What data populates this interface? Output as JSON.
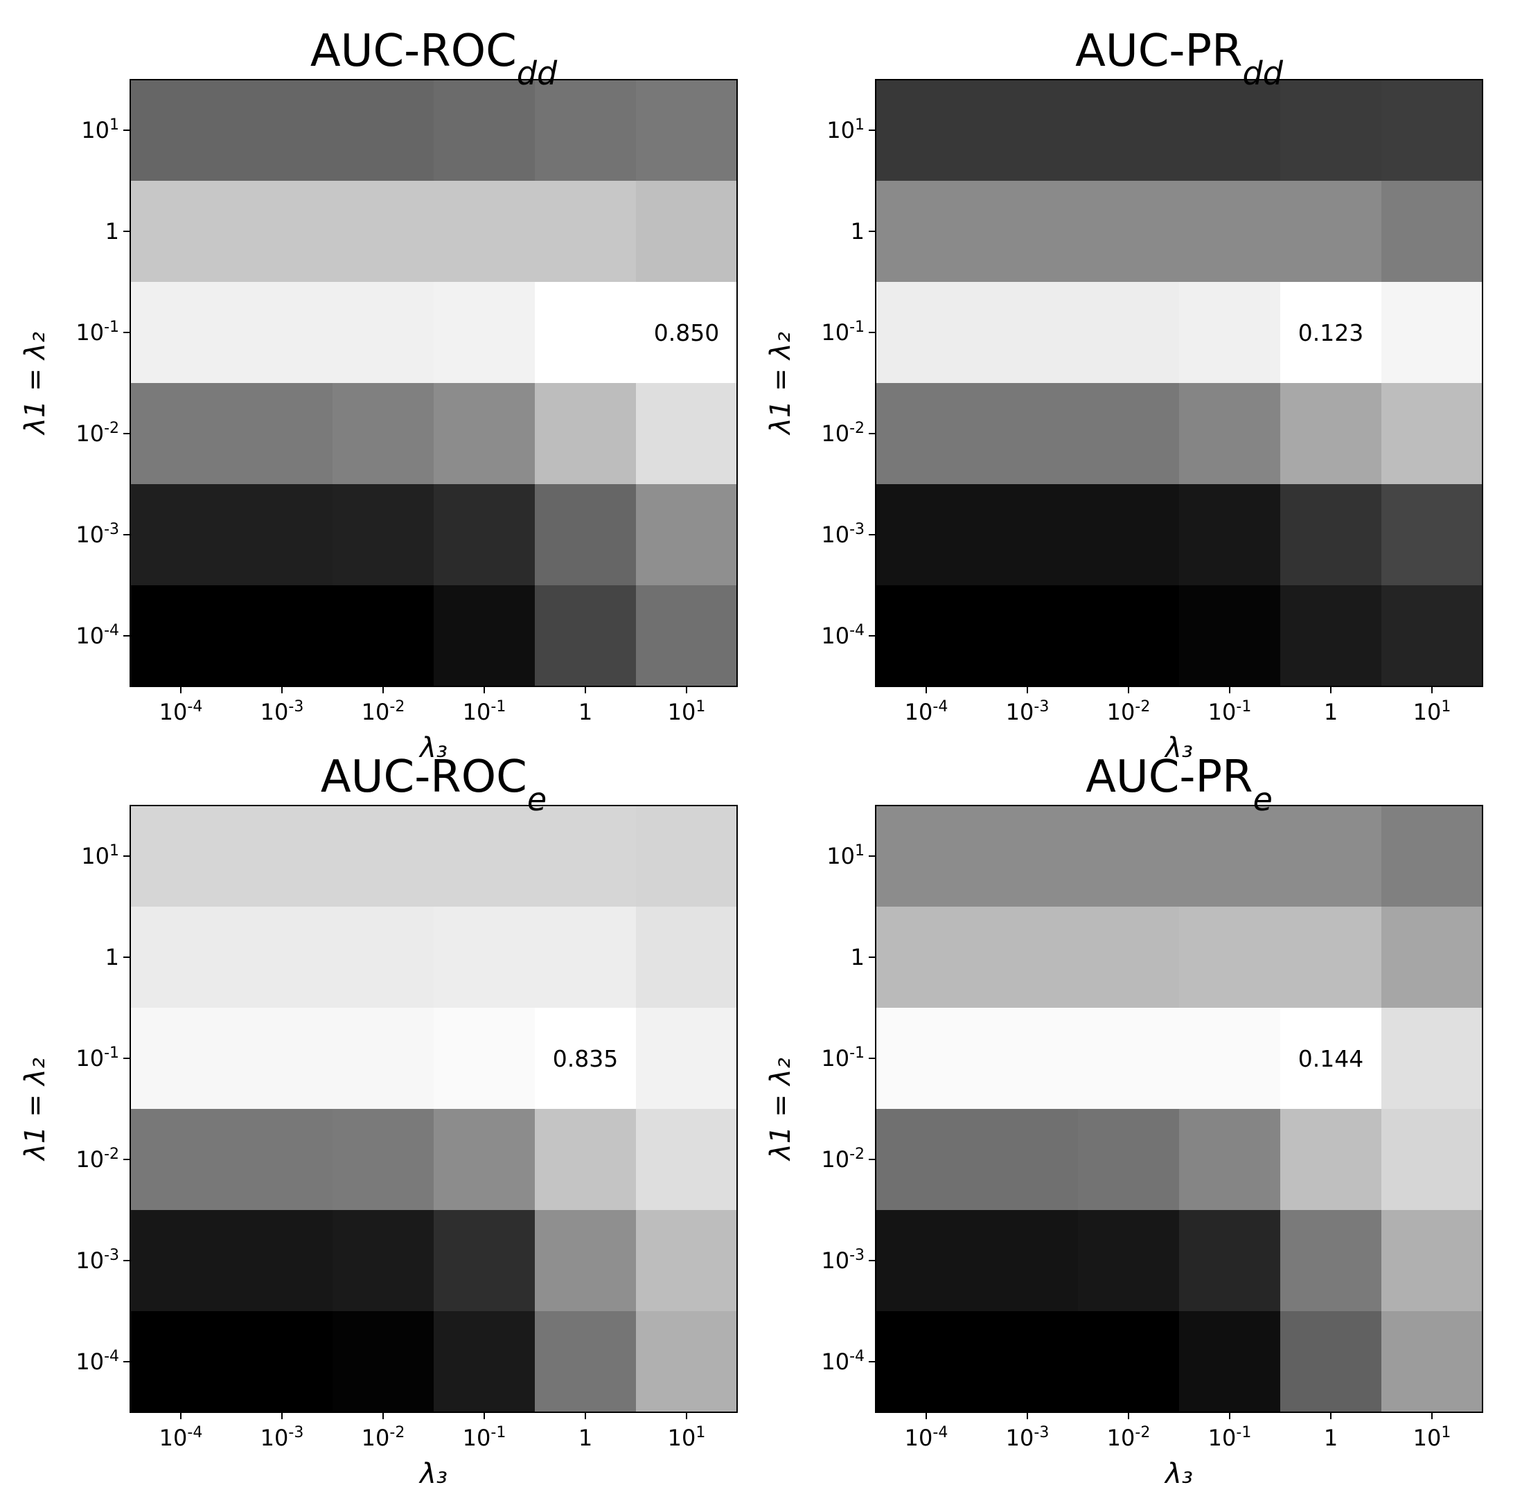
{
  "chart_data": [
    {
      "type": "heatmap",
      "title": "AUC-ROC",
      "title_sub": "dd",
      "xlabel": "λ₃",
      "ylabel": "λ1 = λ₂",
      "x_ticks": [
        "10^-4",
        "10^-3",
        "10^-2",
        "10^-1",
        "1",
        "10^1"
      ],
      "y_ticks": [
        "10^1",
        "1",
        "10^-1",
        "10^-2",
        "10^-3",
        "10^-4"
      ],
      "colormap": "greys",
      "shades": [
        [
          0.4,
          0.4,
          0.4,
          0.42,
          0.45,
          0.47
        ],
        [
          0.78,
          0.78,
          0.78,
          0.78,
          0.78,
          0.75
        ],
        [
          0.94,
          0.94,
          0.94,
          0.95,
          1.0,
          1.0
        ],
        [
          0.48,
          0.48,
          0.5,
          0.55,
          0.74,
          0.87
        ],
        [
          0.12,
          0.12,
          0.13,
          0.17,
          0.4,
          0.56
        ],
        [
          0.0,
          0.0,
          0.0,
          0.06,
          0.27,
          0.44
        ]
      ],
      "annotation": {
        "row": 2,
        "col": 5,
        "text": "0.850"
      }
    },
    {
      "type": "heatmap",
      "title": "AUC-PR",
      "title_sub": "dd",
      "xlabel": "λ₃",
      "ylabel": "λ1 = λ₂",
      "x_ticks": [
        "10^-4",
        "10^-3",
        "10^-2",
        "10^-1",
        "1",
        "10^1"
      ],
      "y_ticks": [
        "10^1",
        "1",
        "10^-1",
        "10^-2",
        "10^-3",
        "10^-4"
      ],
      "colormap": "greys",
      "shades": [
        [
          0.22,
          0.22,
          0.22,
          0.22,
          0.23,
          0.24
        ],
        [
          0.54,
          0.54,
          0.54,
          0.54,
          0.54,
          0.49
        ],
        [
          0.93,
          0.93,
          0.93,
          0.94,
          1.0,
          0.96
        ],
        [
          0.47,
          0.47,
          0.47,
          0.52,
          0.66,
          0.74
        ],
        [
          0.07,
          0.07,
          0.07,
          0.09,
          0.2,
          0.27
        ],
        [
          0.0,
          0.0,
          0.0,
          0.02,
          0.1,
          0.14
        ]
      ],
      "annotation": {
        "row": 2,
        "col": 4,
        "text": "0.123"
      }
    },
    {
      "type": "heatmap",
      "title": "AUC-ROC",
      "title_sub": "e",
      "xlabel": "λ₃",
      "ylabel": "λ1 = λ₂",
      "x_ticks": [
        "10^-4",
        "10^-3",
        "10^-2",
        "10^-1",
        "1",
        "10^1"
      ],
      "y_ticks": [
        "10^1",
        "1",
        "10^-1",
        "10^-2",
        "10^-3",
        "10^-4"
      ],
      "colormap": "greys",
      "shades": [
        [
          0.84,
          0.84,
          0.84,
          0.84,
          0.84,
          0.83
        ],
        [
          0.92,
          0.92,
          0.92,
          0.93,
          0.93,
          0.89
        ],
        [
          0.97,
          0.97,
          0.97,
          0.98,
          1.0,
          0.95
        ],
        [
          0.47,
          0.47,
          0.48,
          0.55,
          0.77,
          0.87
        ],
        [
          0.09,
          0.09,
          0.1,
          0.18,
          0.56,
          0.74
        ],
        [
          0.0,
          0.0,
          0.01,
          0.1,
          0.46,
          0.69
        ]
      ],
      "annotation": {
        "row": 2,
        "col": 4,
        "text": "0.835"
      }
    },
    {
      "type": "heatmap",
      "title": "AUC-PR",
      "title_sub": "e",
      "xlabel": "λ₃",
      "ylabel": "λ1 = λ₂",
      "x_ticks": [
        "10^-4",
        "10^-3",
        "10^-2",
        "10^-1",
        "1",
        "10^1"
      ],
      "y_ticks": [
        "10^1",
        "1",
        "10^-1",
        "10^-2",
        "10^-3",
        "10^-4"
      ],
      "colormap": "greys",
      "shades": [
        [
          0.55,
          0.55,
          0.55,
          0.55,
          0.55,
          0.5
        ],
        [
          0.73,
          0.73,
          0.73,
          0.74,
          0.74,
          0.65
        ],
        [
          0.98,
          0.98,
          0.98,
          0.98,
          1.0,
          0.88
        ],
        [
          0.44,
          0.44,
          0.45,
          0.52,
          0.75,
          0.84
        ],
        [
          0.08,
          0.08,
          0.09,
          0.15,
          0.48,
          0.69
        ],
        [
          0.0,
          0.0,
          0.0,
          0.06,
          0.38,
          0.61
        ]
      ],
      "annotation": {
        "row": 2,
        "col": 4,
        "text": "0.144"
      }
    }
  ]
}
